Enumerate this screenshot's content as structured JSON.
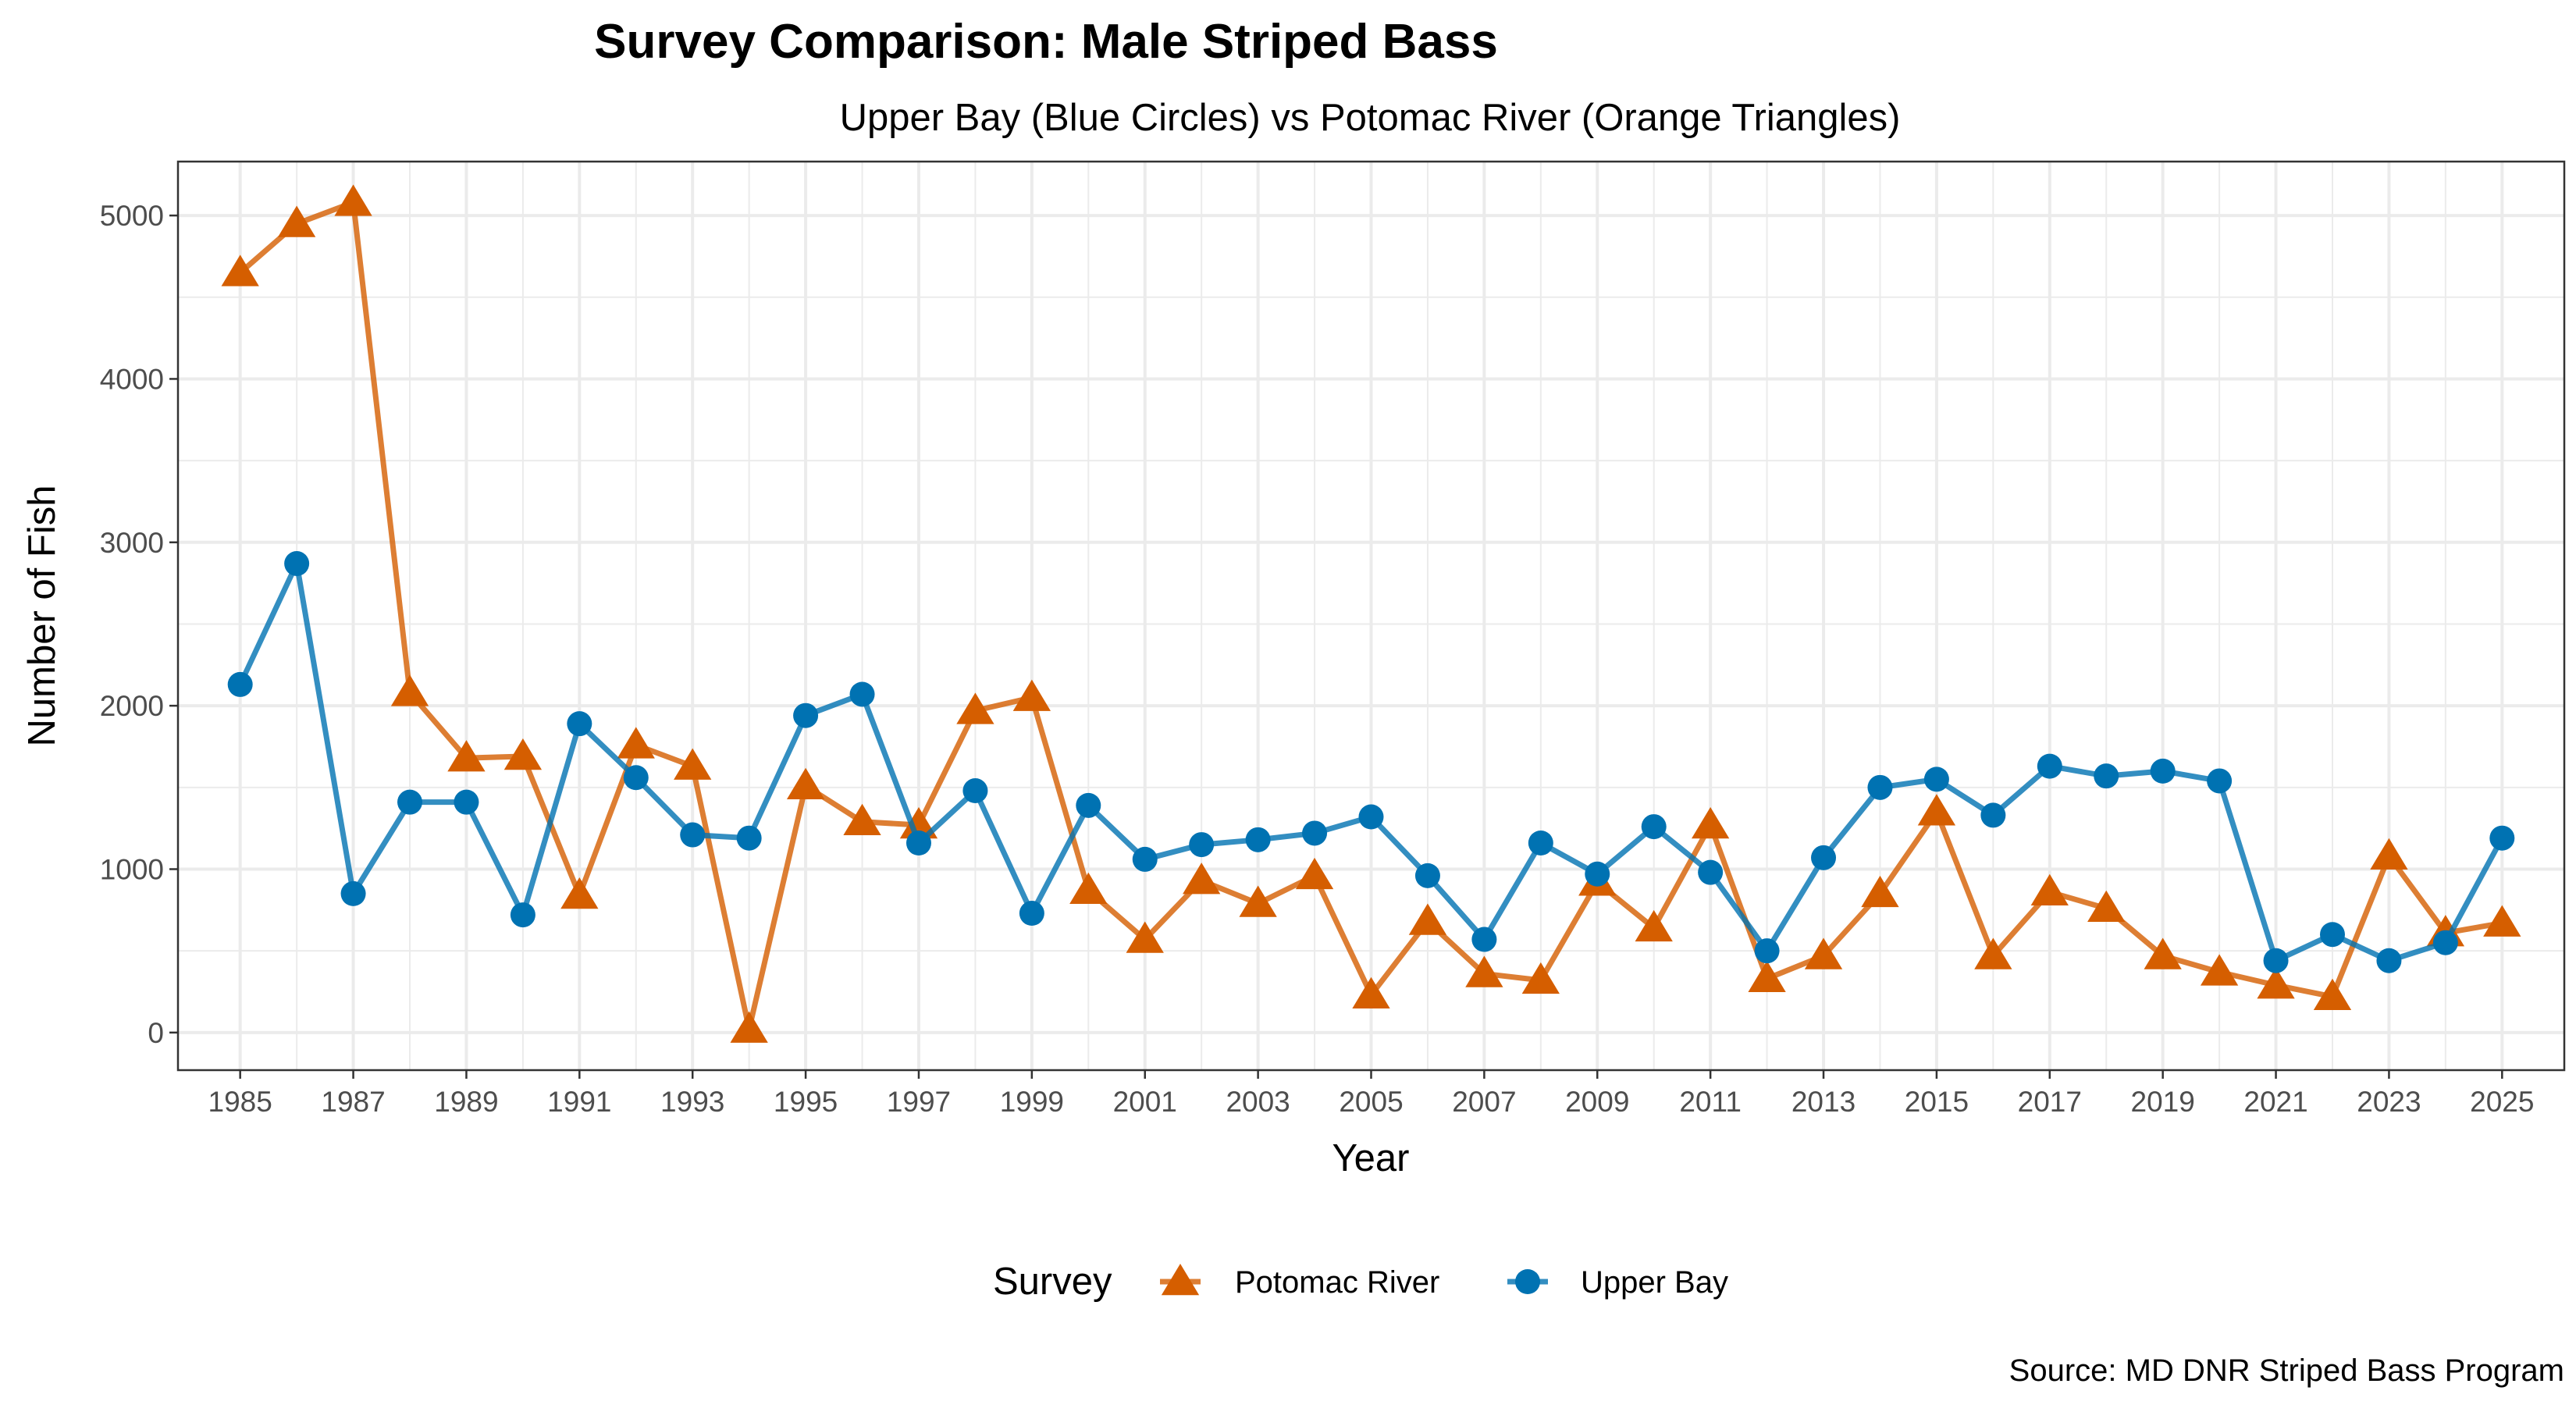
{
  "chart_data": {
    "type": "line",
    "title": "Survey Comparison: Male Striped Bass",
    "subtitle": "Upper Bay (Blue Circles) vs Potomac River (Orange Triangles)",
    "xlabel": "Year",
    "ylabel": "Number of Fish",
    "caption": "Source: MD DNR Striped Bass Program",
    "xlim": [
      1983.9,
      2026.1
    ],
    "ylim": [
      -230,
      5330
    ],
    "xticks": [
      1985,
      1987,
      1989,
      1991,
      1993,
      1995,
      1997,
      1999,
      2001,
      2003,
      2005,
      2007,
      2009,
      2011,
      2013,
      2015,
      2017,
      2019,
      2021,
      2023,
      2025
    ],
    "yticks": [
      0,
      1000,
      2000,
      3000,
      4000,
      5000
    ],
    "grid": true,
    "legend": {
      "title": "Survey",
      "placement": "bottom"
    },
    "x": [
      1985,
      1986,
      1987,
      1988,
      1989,
      1990,
      1991,
      1992,
      1993,
      1994,
      1995,
      1996,
      1997,
      1998,
      1999,
      2000,
      2001,
      2002,
      2003,
      2004,
      2005,
      2006,
      2007,
      2008,
      2009,
      2010,
      2011,
      2012,
      2013,
      2014,
      2015,
      2016,
      2017,
      2018,
      2019,
      2020,
      2021,
      2022,
      2023,
      2024,
      2025
    ],
    "series": [
      {
        "name": "Potomac River",
        "color": "#D55E00",
        "marker": "triangle",
        "values": [
          4650,
          4950,
          5080,
          2080,
          1680,
          1690,
          840,
          1760,
          1630,
          20,
          1510,
          1290,
          1270,
          1970,
          2050,
          870,
          570,
          930,
          790,
          960,
          230,
          680,
          360,
          320,
          920,
          640,
          1270,
          330,
          470,
          850,
          1350,
          470,
          860,
          760,
          470,
          370,
          290,
          220,
          1080,
          610,
          670
        ]
      },
      {
        "name": "Upper Bay",
        "color": "#0072B2",
        "marker": "circle",
        "values": [
          2130,
          2870,
          850,
          1410,
          1410,
          720,
          1890,
          1560,
          1210,
          1190,
          1940,
          2070,
          1160,
          1480,
          730,
          1390,
          1060,
          1150,
          1180,
          1220,
          1320,
          960,
          570,
          1160,
          970,
          1260,
          980,
          500,
          1070,
          1500,
          1550,
          1330,
          1630,
          1570,
          1600,
          1540,
          440,
          600,
          440,
          550,
          1190
        ]
      }
    ]
  }
}
